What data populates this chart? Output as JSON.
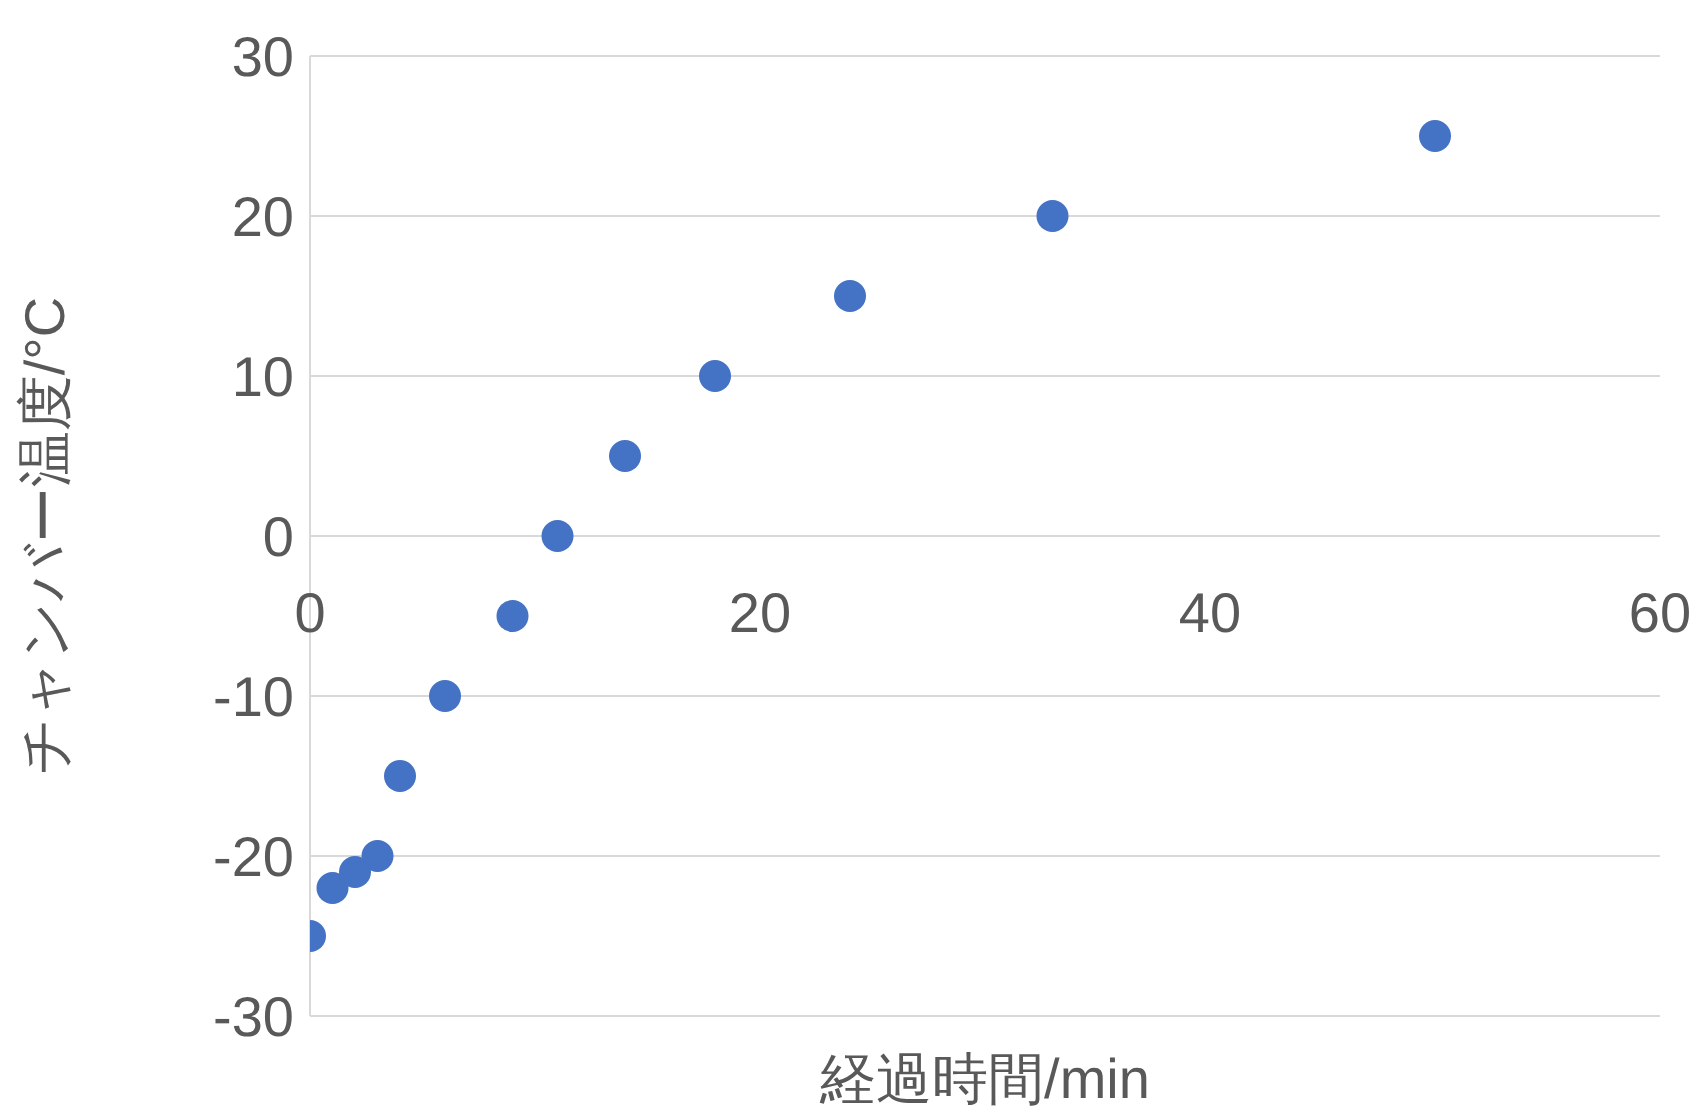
{
  "chart_data": {
    "type": "scatter",
    "xlabel": "経過時間/min",
    "ylabel": "チャンバー温度/°C",
    "x": [
      0,
      1,
      2,
      3,
      4,
      6,
      9,
      11,
      14,
      18,
      24,
      33,
      50
    ],
    "series": [
      {
        "color": "#4472c4",
        "values": [
          -25,
          -22,
          -21,
          -20,
          -15,
          -10,
          -5,
          0,
          5,
          10,
          15,
          20,
          25
        ]
      }
    ],
    "xlim": [
      0,
      60
    ],
    "xticks": [
      0,
      20,
      40,
      60
    ],
    "ylim": [
      -30,
      30
    ],
    "yticks": [
      -30,
      -20,
      -10,
      0,
      10,
      20,
      30
    ],
    "grid": "y",
    "marker": "circle",
    "legend": false
  }
}
